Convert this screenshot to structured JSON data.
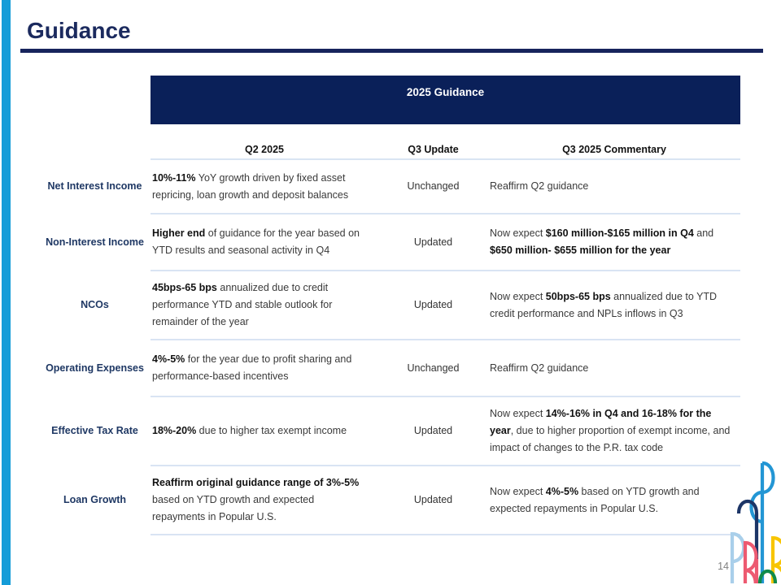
{
  "slide": {
    "title": "Guidance",
    "page_number": "14",
    "colors": {
      "accent_cyan": "#149CD8",
      "title_navy": "#1B2A5E",
      "header_bar_navy": "#0A2059",
      "label_navy": "#1F3864",
      "divider_blue": "#D9E4F3",
      "logo_blue": "#2396D4",
      "logo_dark_navy": "#1C3567",
      "logo_light_blue": "#A9CFEA",
      "logo_red": "#ED5A71",
      "logo_yellow": "#F8C500",
      "logo_green": "#108B4B"
    }
  },
  "table": {
    "header": "2025 Guidance",
    "columns": [
      "Q2 2025",
      "Q3 Update",
      "Q3 2025 Commentary"
    ],
    "rows": [
      {
        "label": "Net Interest Income",
        "q2": [
          {
            "text": "10%-11%",
            "bold": true
          },
          {
            "text": " YoY growth driven by fixed asset repricing, loan growth and deposit balances",
            "bold": false
          }
        ],
        "update": "Unchanged",
        "commentary": [
          {
            "text": "Reaffirm Q2 guidance",
            "bold": false
          }
        ]
      },
      {
        "label": "Non-Interest Income",
        "q2": [
          {
            "text": "Higher end",
            "bold": true
          },
          {
            "text": " of guidance for the year based on YTD results and seasonal activity in Q4",
            "bold": false
          }
        ],
        "update": "Updated",
        "commentary": [
          {
            "text": "Now expect ",
            "bold": false
          },
          {
            "text": "$160 million-$165 million in Q4",
            "bold": true
          },
          {
            "text": " and ",
            "bold": false
          },
          {
            "text": "$650 million- $655 million for the year",
            "bold": true
          }
        ]
      },
      {
        "label": "NCOs",
        "q2": [
          {
            "text": "45bps-65 bps",
            "bold": true
          },
          {
            "text": " annualized due to credit performance YTD and stable outlook for remainder of the year",
            "bold": false
          }
        ],
        "update": "Updated",
        "commentary": [
          {
            "text": "Now expect ",
            "bold": false
          },
          {
            "text": "50bps-65 bps",
            "bold": true
          },
          {
            "text": " annualized due to YTD credit performance and NPLs inflows in Q3",
            "bold": false
          }
        ]
      },
      {
        "label": "Operating Expenses",
        "q2": [
          {
            "text": "4%-5%",
            "bold": true
          },
          {
            "text": " for the year due to profit sharing and performance-based incentives",
            "bold": false
          }
        ],
        "update": "Unchanged",
        "commentary": [
          {
            "text": "Reaffirm Q2 guidance",
            "bold": false
          }
        ]
      },
      {
        "label": "Effective Tax Rate",
        "q2": [
          {
            "text": "18%-20%",
            "bold": true
          },
          {
            "text": " due to higher tax exempt income",
            "bold": false
          }
        ],
        "update": "Updated",
        "commentary": [
          {
            "text": "Now expect ",
            "bold": false
          },
          {
            "text": "14%-16% in Q4 and 16-18% for the year",
            "bold": true
          },
          {
            "text": ", due to higher proportion of exempt income, and impact of changes to the P.R. tax code",
            "bold": false
          }
        ]
      },
      {
        "label": "Loan Growth",
        "q2": [
          {
            "text": "Reaffirm original guidance range of 3%-5%",
            "bold": true
          },
          {
            "text": " based on YTD growth and expected repayments in Popular U.S.",
            "bold": false
          }
        ],
        "update": "Updated",
        "commentary": [
          {
            "text": "Now expect ",
            "bold": false
          },
          {
            "text": "4%-5%",
            "bold": true
          },
          {
            "text": " based on YTD growth and expected repayments in Popular U.S.",
            "bold": false
          }
        ]
      }
    ]
  }
}
